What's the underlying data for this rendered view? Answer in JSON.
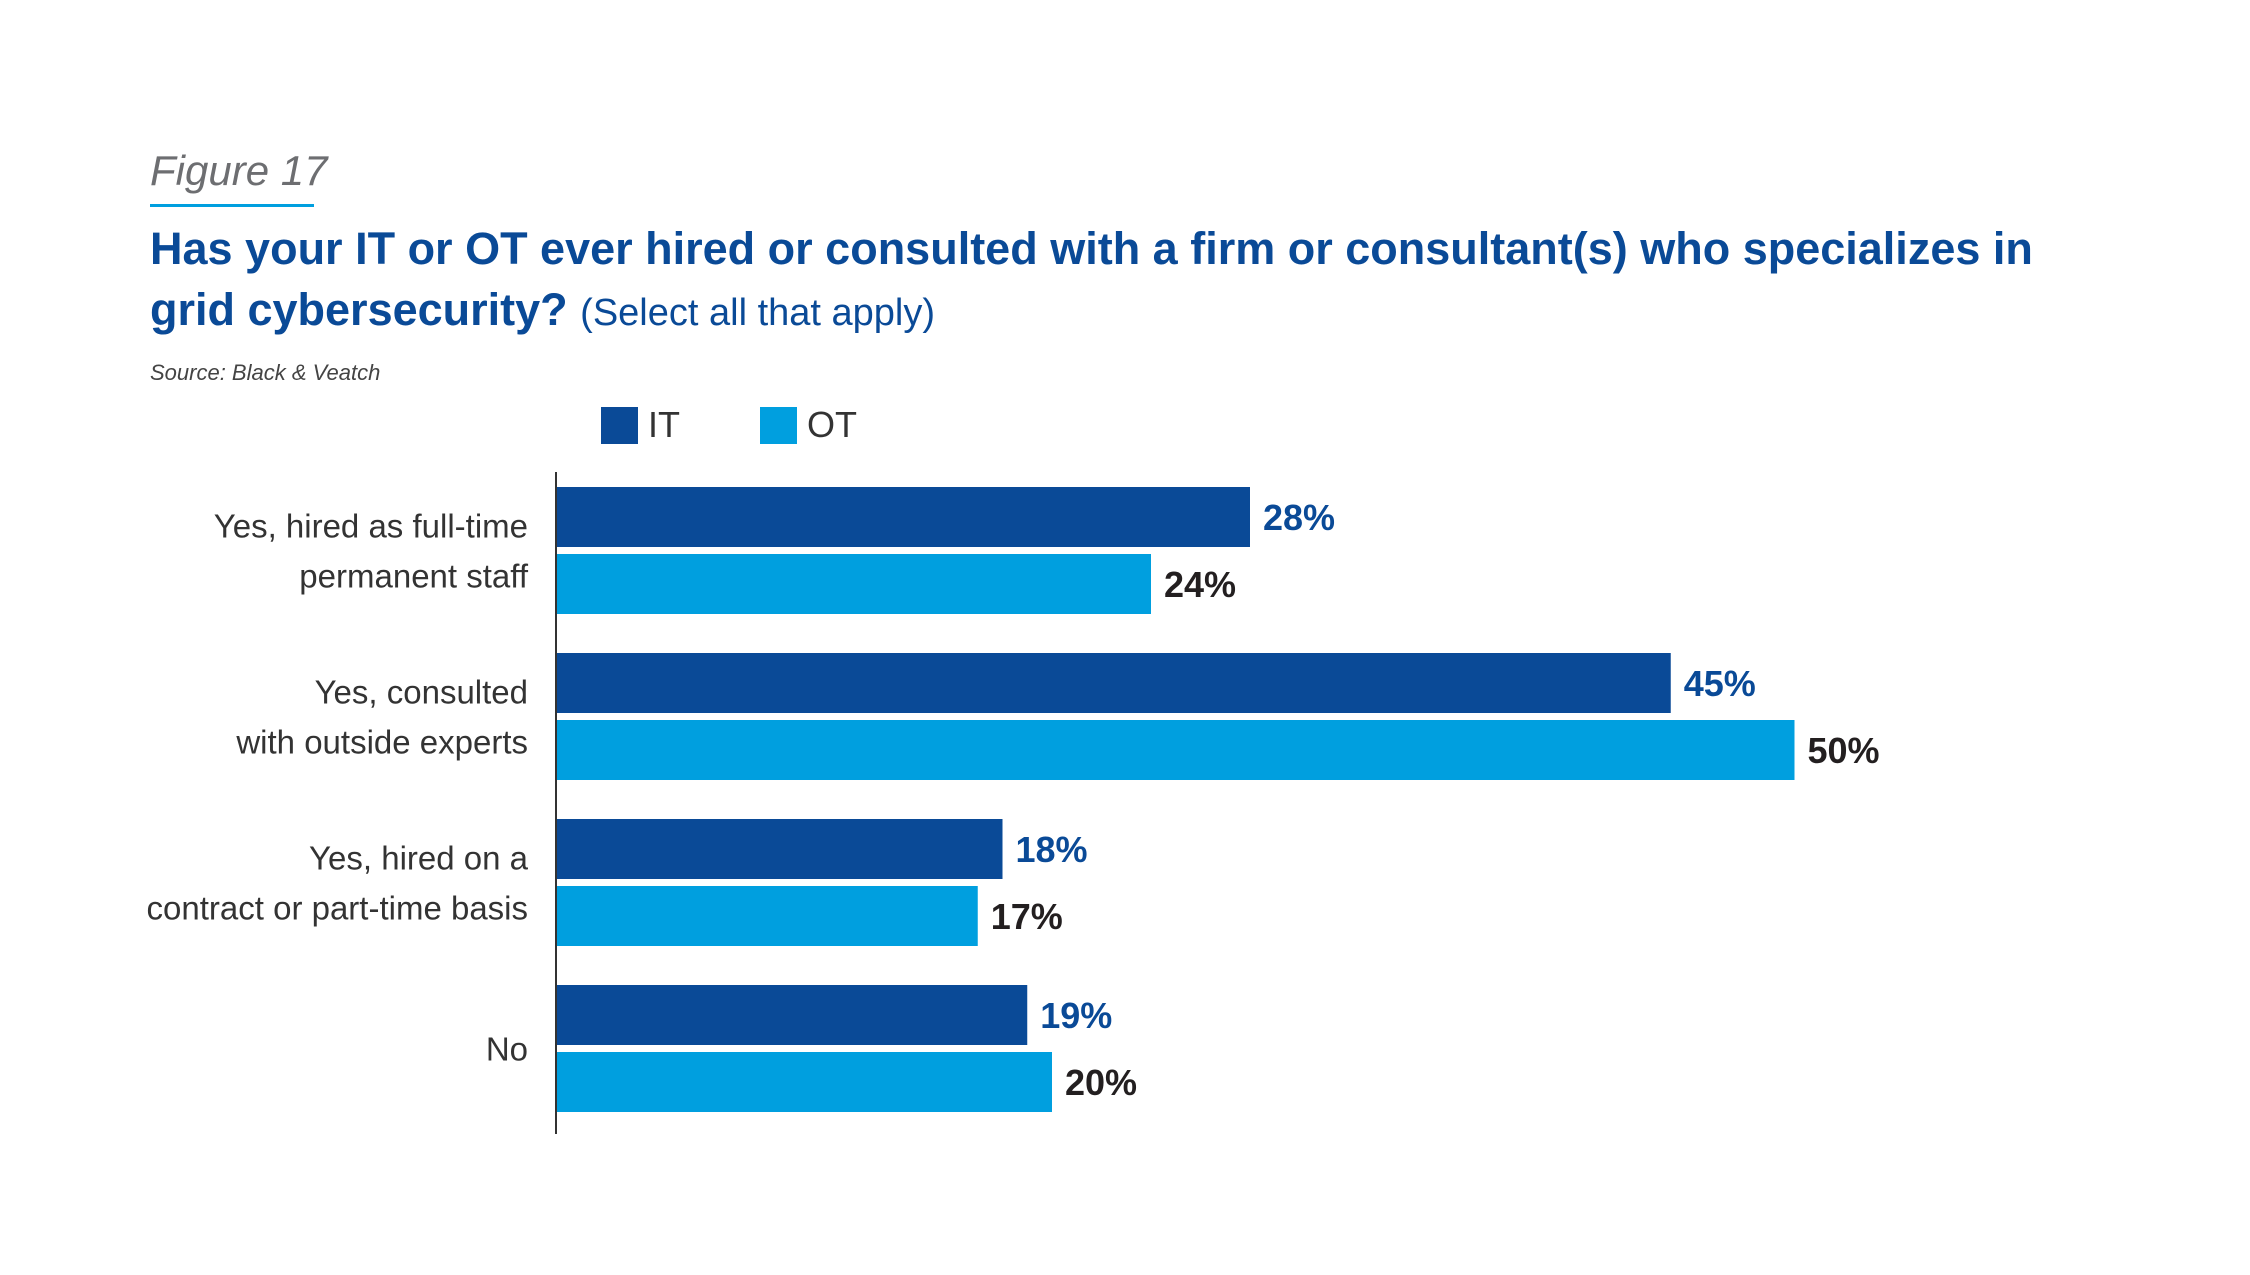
{
  "figure": "Figure 17",
  "title": "Has your IT or OT ever hired or consulted with a firm or consultant(s) who specializes in grid cybersecurity?",
  "subtitle": "(Select all that apply)",
  "source": "Source: Black & Veatch",
  "chart_data": {
    "type": "bar",
    "orientation": "horizontal",
    "categories": [
      [
        "Yes, hired as full-time",
        "permanent staff"
      ],
      [
        "Yes, consulted",
        "with outside experts"
      ],
      [
        "Yes, hired on a",
        "contract or part-time basis"
      ],
      [
        "No"
      ]
    ],
    "series": [
      {
        "name": "IT",
        "values": [
          28,
          45,
          18,
          19
        ],
        "labels": [
          "28%",
          "45%",
          "18%",
          "19%"
        ],
        "color": "#0a4a97",
        "label_color": "#0a4a97"
      },
      {
        "name": "OT",
        "values": [
          24,
          50,
          17,
          20
        ],
        "labels": [
          "24%",
          "50%",
          "17%",
          "20%"
        ],
        "color": "#009fdf",
        "label_color": "#231f20"
      }
    ],
    "xlim": [
      0,
      50
    ],
    "grid": false,
    "legend_position": "top-left"
  }
}
